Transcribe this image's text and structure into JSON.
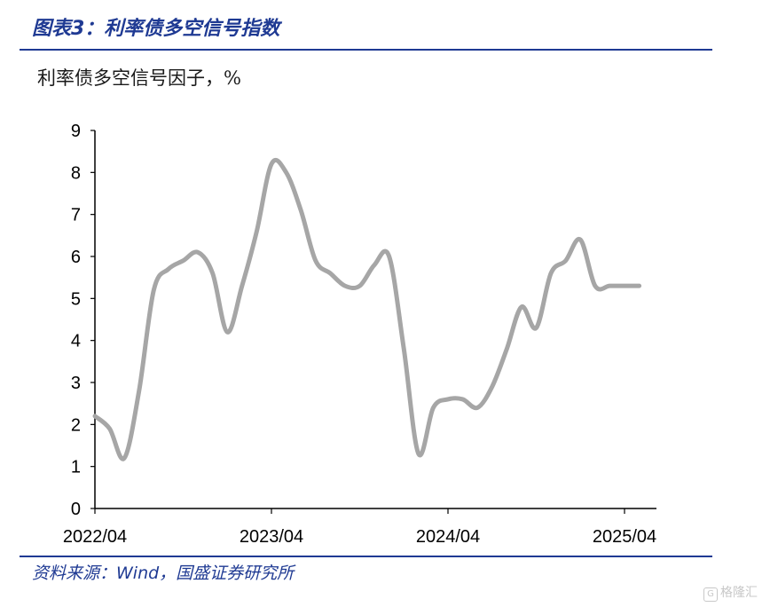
{
  "header": {
    "title": "图表3：利率债多空信号指数"
  },
  "footer": {
    "source": "资料来源：Wind，国盛证券研究所",
    "watermark": "格隆汇"
  },
  "colors": {
    "brand": "#1f3a93",
    "series_line": "#a6a6a6",
    "axis": "#000000"
  },
  "chart_data": {
    "type": "line",
    "subtitle": "利率债多空信号因子，%",
    "xlabel": "",
    "ylabel": "",
    "ylim": [
      0,
      9
    ],
    "yticks": [
      0,
      1,
      2,
      3,
      4,
      5,
      6,
      7,
      8,
      9
    ],
    "xticks": [
      "2022/04",
      "2023/04",
      "2024/04",
      "2025/04"
    ],
    "grid": false,
    "legend": "none",
    "series": [
      {
        "x": [
          "2022/04",
          "2022/05",
          "2022/06",
          "2022/07",
          "2022/08",
          "2022/09",
          "2022/10",
          "2022/11",
          "2022/12",
          "2023/01",
          "2023/02",
          "2023/03",
          "2023/04",
          "2023/05",
          "2023/06",
          "2023/07",
          "2023/08",
          "2023/09",
          "2023/10",
          "2023/11",
          "2023/12",
          "2024/01",
          "2024/02",
          "2024/03",
          "2024/04",
          "2024/05",
          "2024/06",
          "2024/07",
          "2024/08",
          "2024/09",
          "2024/10",
          "2024/11",
          "2024/12",
          "2025/01",
          "2025/02",
          "2025/03",
          "2025/04",
          "2025/05"
        ],
        "values": [
          2.2,
          1.9,
          1.2,
          2.8,
          5.2,
          5.7,
          5.9,
          6.1,
          5.6,
          4.2,
          5.3,
          6.6,
          8.2,
          8.0,
          7.1,
          5.9,
          5.6,
          5.3,
          5.3,
          5.8,
          6.0,
          3.8,
          1.3,
          2.4,
          2.6,
          2.6,
          2.4,
          2.9,
          3.8,
          4.8,
          4.3,
          5.6,
          5.9,
          6.4,
          5.3,
          5.3,
          5.3,
          5.3
        ]
      }
    ]
  }
}
